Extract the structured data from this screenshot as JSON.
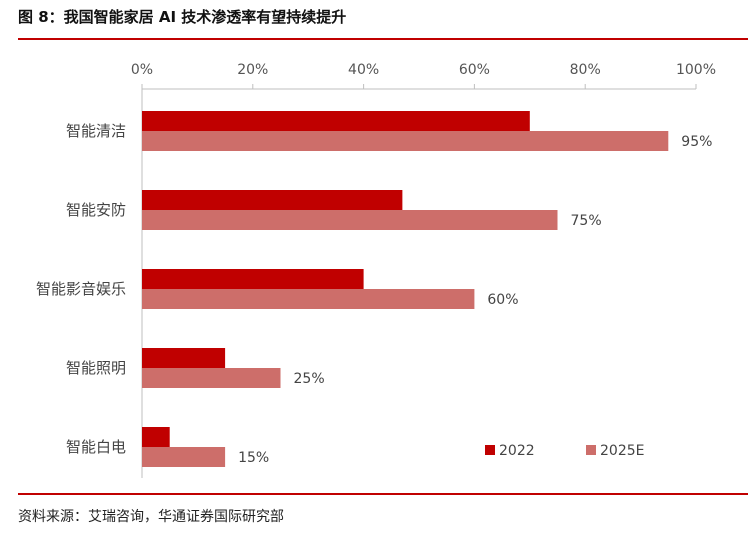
{
  "figure": {
    "title": "图 8：我国智能家居 AI 技术渗透率有望持续提升",
    "source": "资料来源：艾瑞咨询，华通证券国际研究部"
  },
  "colors": {
    "series_2022": "#c00000",
    "series_2025E": "#cd6e6a",
    "rule": "#c00000",
    "axis": "#bfbfbf"
  },
  "chart_data": {
    "type": "bar",
    "orientation": "horizontal",
    "categories": [
      "智能清洁",
      "智能安防",
      "智能影音娱乐",
      "智能照明",
      "智能白电"
    ],
    "series": [
      {
        "name": "2022",
        "values": [
          70,
          47,
          40,
          15,
          5
        ]
      },
      {
        "name": "2025E",
        "values": [
          95,
          75,
          60,
          25,
          15
        ],
        "labels": [
          "95%",
          "75%",
          "60%",
          "25%",
          "15%"
        ]
      }
    ],
    "xlim": [
      0,
      100
    ],
    "ticks": [
      "0%",
      "20%",
      "40%",
      "60%",
      "80%",
      "100%"
    ],
    "tick_values": [
      0,
      20,
      40,
      60,
      80,
      100
    ],
    "axis_position": "top",
    "grid": false,
    "legend_position": "bottom-right"
  }
}
